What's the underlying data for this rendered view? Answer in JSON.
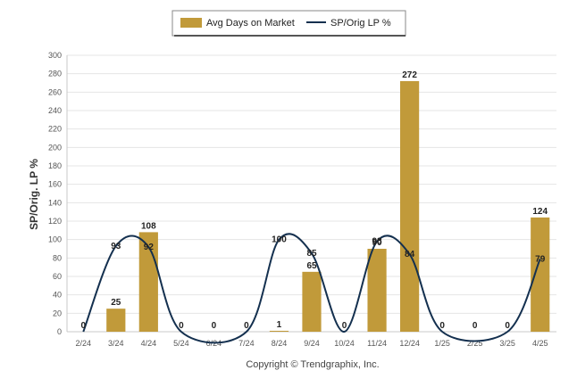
{
  "chart_data": {
    "type": "bar",
    "categories": [
      "2/24",
      "3/24",
      "4/24",
      "5/24",
      "6/24",
      "7/24",
      "8/24",
      "9/24",
      "10/24",
      "11/24",
      "12/24",
      "1/25",
      "2/25",
      "3/25",
      "4/25"
    ],
    "series": [
      {
        "name": "Avg Days on Market",
        "type": "bar",
        "color": "#c19a3a",
        "values": [
          0,
          25,
          108,
          0,
          0,
          0,
          1,
          65,
          0,
          90,
          272,
          0,
          0,
          0,
          124
        ]
      },
      {
        "name": "SP/Orig LP %",
        "type": "line",
        "color": "#14304f",
        "values": [
          0,
          93,
          92,
          0,
          null,
          0,
          100,
          85,
          0,
          98,
          84,
          0,
          null,
          0,
          79
        ]
      }
    ],
    "bar_labels": [
      "0",
      "25",
      "108",
      "0",
      "0",
      "0",
      "1",
      "65",
      "0",
      "90",
      "272",
      "0",
      "0",
      "0",
      "124"
    ],
    "line_labels": [
      "",
      "93",
      "92",
      "",
      "",
      "",
      "100",
      "85",
      "",
      "98",
      "84",
      "",
      "",
      "",
      "79"
    ],
    "ylabel": "SP/Orig. LP %",
    "ylim": [
      0,
      300
    ],
    "yticks": [
      0,
      20,
      40,
      60,
      80,
      100,
      120,
      140,
      160,
      180,
      200,
      220,
      240,
      260,
      280,
      300
    ],
    "grid": true,
    "legend_position": "top-center"
  },
  "footer": "Copyright © Trendgraphix, Inc."
}
